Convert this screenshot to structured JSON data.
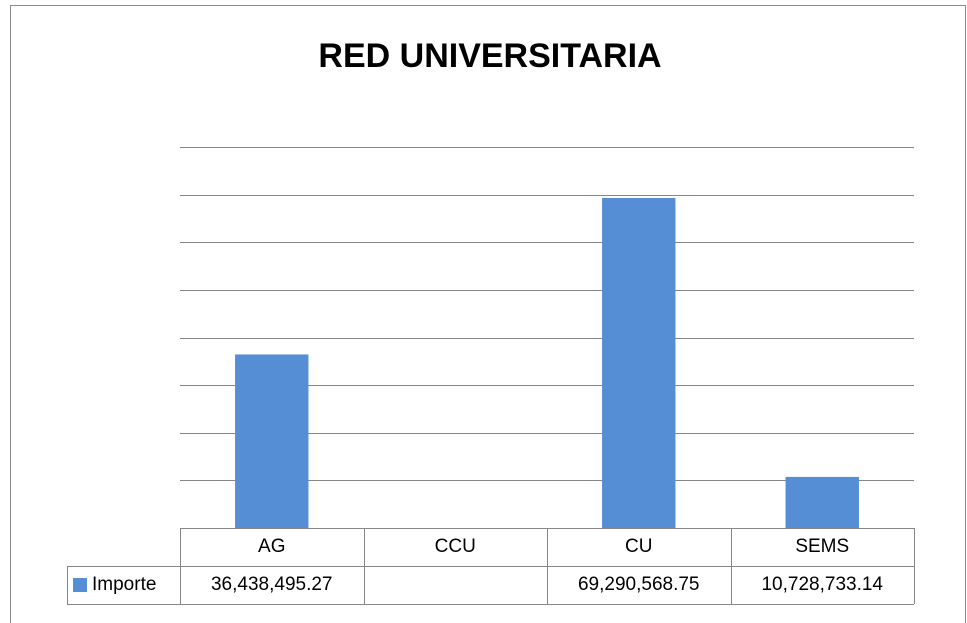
{
  "chart_data": {
    "type": "bar",
    "title": "RED UNIVERSITARIA",
    "categories": [
      "AG",
      "CCU",
      "CU",
      "SEMS"
    ],
    "series": [
      {
        "name": "Importe",
        "color": "#558ed5",
        "values": [
          36438495.27,
          null,
          69290568.75,
          10728733.14
        ],
        "value_labels": [
          "36,438,495.27",
          null,
          "69,290,568.75",
          "10,728,733.14"
        ]
      }
    ],
    "ylim": [
      0,
      80000000
    ],
    "yticks": [
      0,
      10000000,
      20000000,
      30000000,
      40000000,
      50000000,
      60000000,
      70000000,
      80000000
    ],
    "grid": true
  }
}
